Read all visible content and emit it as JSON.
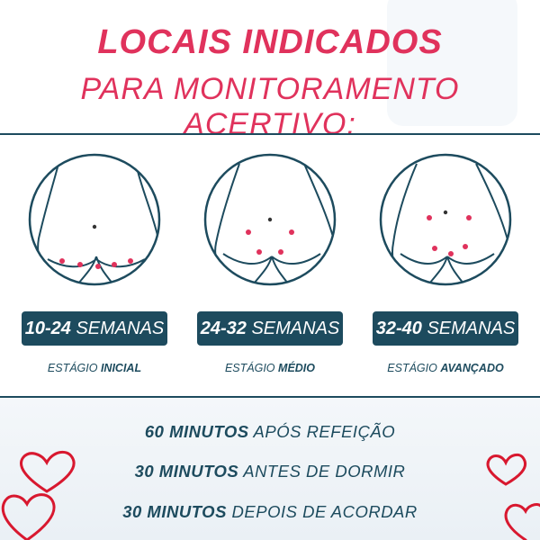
{
  "header": {
    "title": "LOCAIS INDICADOS",
    "subtitle": "PARA MONITORAMENTO ACERTIVO:"
  },
  "colors": {
    "accent": "#e0325c",
    "navy": "#1d4b5e"
  },
  "stages": [
    {
      "range": "10-24",
      "unit": "SEMANAS",
      "prefix": "ESTÁGIO",
      "name": "INICIAL"
    },
    {
      "range": "24-32",
      "unit": "SEMANAS",
      "prefix": "ESTÁGIO",
      "name": "MÉDIO"
    },
    {
      "range": "32-40",
      "unit": "SEMANAS",
      "prefix": "ESTÁGIO",
      "name": "AVANÇADO"
    }
  ],
  "tips": [
    {
      "bold": "60 MINUTOS",
      "rest": "APÓS REFEIÇÃO"
    },
    {
      "bold": "30 MINUTOS",
      "rest": "ANTES DE DORMIR"
    },
    {
      "bold": "30 MINUTOS",
      "rest": "DEPOIS DE ACORDAR"
    }
  ],
  "icons": [
    "navel-icon",
    "heart-icon"
  ]
}
